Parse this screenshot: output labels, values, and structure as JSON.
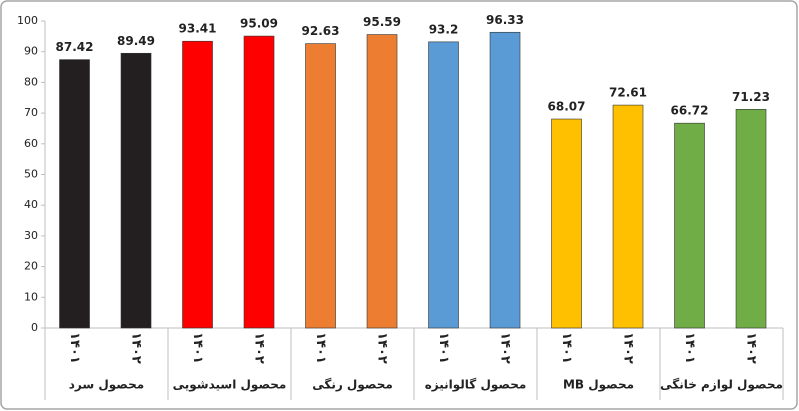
{
  "chart_data": {
    "type": "bar",
    "groups": [
      {
        "name": "محصول سرد",
        "color": "#231f20",
        "categories": [
          "۱۴۰۱",
          "۱۴۰۲"
        ],
        "values": [
          87.42,
          89.49
        ]
      },
      {
        "name": "محصول اسیدشویی",
        "color": "#ff0000",
        "categories": [
          "۱۴۰۱",
          "۱۴۰۲"
        ],
        "values": [
          93.41,
          95.09
        ]
      },
      {
        "name": "محصول رنگی",
        "color": "#ed7d31",
        "categories": [
          "۱۴۰۱",
          "۱۴۰۲"
        ],
        "values": [
          92.63,
          95.59
        ]
      },
      {
        "name": "محصول گالوانیزه",
        "color": "#5b9bd5",
        "categories": [
          "۱۴۰۱",
          "۱۴۰۲"
        ],
        "values": [
          93.2,
          96.33
        ]
      },
      {
        "name": "محصول MB",
        "color": "#ffc000",
        "categories": [
          "۱۴۰۱",
          "۱۴۰۲"
        ],
        "values": [
          68.07,
          72.61
        ]
      },
      {
        "name": "محصول لوازم خانگی",
        "color": "#70ad47",
        "categories": [
          "۱۴۰۱",
          "۱۴۰۲"
        ],
        "values": [
          66.72,
          71.23
        ]
      }
    ],
    "ylim": [
      0,
      100
    ],
    "yticks": [
      0,
      10,
      20,
      30,
      40,
      50,
      60,
      70,
      80,
      90,
      100
    ],
    "grid": false
  }
}
